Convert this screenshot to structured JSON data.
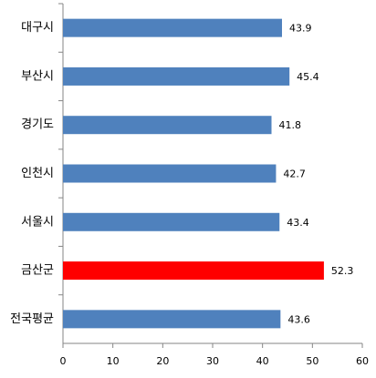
{
  "chart_data": {
    "type": "barh",
    "categories": [
      "대구시",
      "부산시",
      "경기도",
      "인천시",
      "서울시",
      "금산군",
      "전국평균"
    ],
    "values": [
      43.9,
      45.4,
      41.8,
      42.7,
      43.4,
      52.3,
      43.6
    ],
    "colors": [
      "#4f81bd",
      "#4f81bd",
      "#4f81bd",
      "#4f81bd",
      "#4f81bd",
      "#ff0000",
      "#4f81bd"
    ],
    "xlim": [
      0,
      60
    ],
    "xticks": [
      0,
      10,
      20,
      30,
      40,
      50,
      60
    ],
    "grid": false
  }
}
